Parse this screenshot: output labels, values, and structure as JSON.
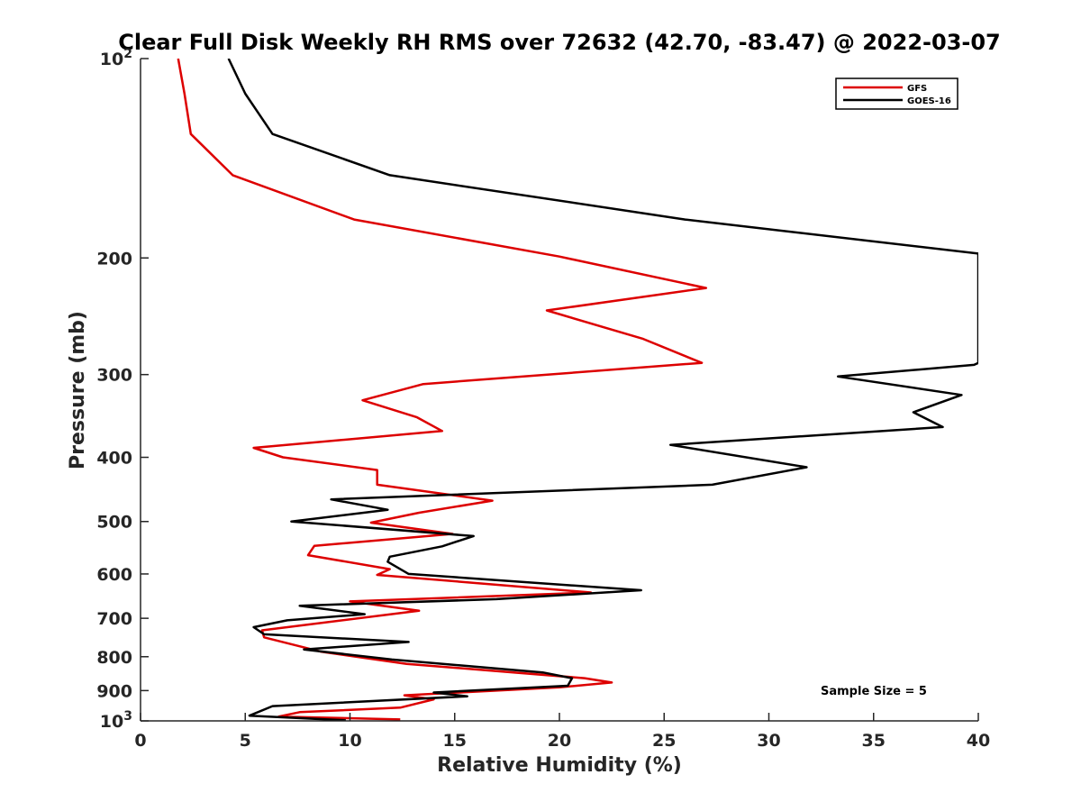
{
  "colors": {
    "gfs": "#dd0000",
    "goes16": "#000000",
    "axis": "#262626",
    "background": "#ffffff"
  },
  "chart_data": {
    "type": "line",
    "title": "Clear Full Disk Weekly RH RMS over 72632 (42.70, -83.47) @ 2022-03-07",
    "xlabel": "Relative Humidity (%)",
    "ylabel": "Pressure (mb)",
    "xlim": [
      0,
      40
    ],
    "ylim": [
      100,
      1000
    ],
    "yscale": "log",
    "y_reversed": true,
    "grid": false,
    "legend_position": "top-right",
    "x_ticks": [
      0,
      5,
      10,
      15,
      20,
      25,
      30,
      35,
      40
    ],
    "x_tick_labels": [
      "0",
      "5",
      "10",
      "15",
      "20",
      "25",
      "30",
      "35",
      "40"
    ],
    "y_ticks": [
      100,
      200,
      300,
      400,
      500,
      600,
      700,
      800,
      900,
      1000
    ],
    "y_tick_labels": [
      {
        "base": "10",
        "exp": "2"
      },
      {
        "base": "200",
        "exp": ""
      },
      {
        "base": "300",
        "exp": ""
      },
      {
        "base": "400",
        "exp": ""
      },
      {
        "base": "500",
        "exp": ""
      },
      {
        "base": "600",
        "exp": ""
      },
      {
        "base": "700",
        "exp": ""
      },
      {
        "base": "800",
        "exp": ""
      },
      {
        "base": "900",
        "exp": ""
      },
      {
        "base": "10",
        "exp": "3"
      }
    ],
    "annotation": "Sample Size = 5",
    "series": [
      {
        "name": "GFS",
        "color": "#dd0000",
        "points": [
          [
            1.8,
            100
          ],
          [
            2.1,
            113
          ],
          [
            2.4,
            130
          ],
          [
            4.4,
            150
          ],
          [
            10.2,
            175
          ],
          [
            20.0,
            199
          ],
          [
            27.0,
            222
          ],
          [
            19.4,
            240
          ],
          [
            24.0,
            265
          ],
          [
            26.8,
            288
          ],
          [
            13.5,
            310
          ],
          [
            10.6,
            328
          ],
          [
            13.2,
            348
          ],
          [
            14.4,
            365
          ],
          [
            5.4,
            387
          ],
          [
            6.8,
            400
          ],
          [
            11.3,
            418
          ],
          [
            11.3,
            440
          ],
          [
            16.8,
            465
          ],
          [
            13.3,
            485
          ],
          [
            11.0,
            502
          ],
          [
            14.9,
            522
          ],
          [
            8.3,
            544
          ],
          [
            8.0,
            562
          ],
          [
            11.9,
            590
          ],
          [
            11.3,
            602
          ],
          [
            21.5,
            640
          ],
          [
            10.0,
            660
          ],
          [
            13.3,
            682
          ],
          [
            5.8,
            730
          ],
          [
            5.9,
            748
          ],
          [
            8.6,
            786
          ],
          [
            12.7,
            820
          ],
          [
            21.2,
            862
          ],
          [
            22.5,
            875
          ],
          [
            20.0,
            890
          ],
          [
            12.6,
            915
          ],
          [
            14.0,
            928
          ],
          [
            12.4,
            955
          ],
          [
            7.6,
            970
          ],
          [
            6.6,
            985
          ],
          [
            12.4,
            995
          ]
        ]
      },
      {
        "name": "GOES-16",
        "color": "#000000",
        "points": [
          [
            4.2,
            100
          ],
          [
            5.0,
            113
          ],
          [
            6.3,
            130
          ],
          [
            11.9,
            150
          ],
          [
            26.0,
            175
          ],
          [
            40.0,
            197
          ],
          [
            40.0,
            288
          ],
          [
            39.8,
            290
          ],
          [
            33.3,
            302
          ],
          [
            39.2,
            322
          ],
          [
            36.9,
            342
          ],
          [
            38.3,
            360
          ],
          [
            25.3,
            383
          ],
          [
            31.8,
            414
          ],
          [
            27.3,
            440
          ],
          [
            9.1,
            463
          ],
          [
            11.8,
            480
          ],
          [
            7.2,
            500
          ],
          [
            15.9,
            526
          ],
          [
            14.4,
            545
          ],
          [
            11.9,
            565
          ],
          [
            11.8,
            575
          ],
          [
            12.8,
            600
          ],
          [
            23.9,
            635
          ],
          [
            17.0,
            655
          ],
          [
            7.6,
            670
          ],
          [
            10.7,
            690
          ],
          [
            7.0,
            705
          ],
          [
            5.4,
            722
          ],
          [
            5.9,
            740
          ],
          [
            12.8,
            760
          ],
          [
            7.8,
            780
          ],
          [
            12.0,
            808
          ],
          [
            19.2,
            845
          ],
          [
            20.6,
            862
          ],
          [
            20.4,
            885
          ],
          [
            14.0,
            906
          ],
          [
            15.6,
            918
          ],
          [
            6.3,
            950
          ],
          [
            5.2,
            982
          ],
          [
            9.8,
            998
          ]
        ]
      }
    ]
  }
}
